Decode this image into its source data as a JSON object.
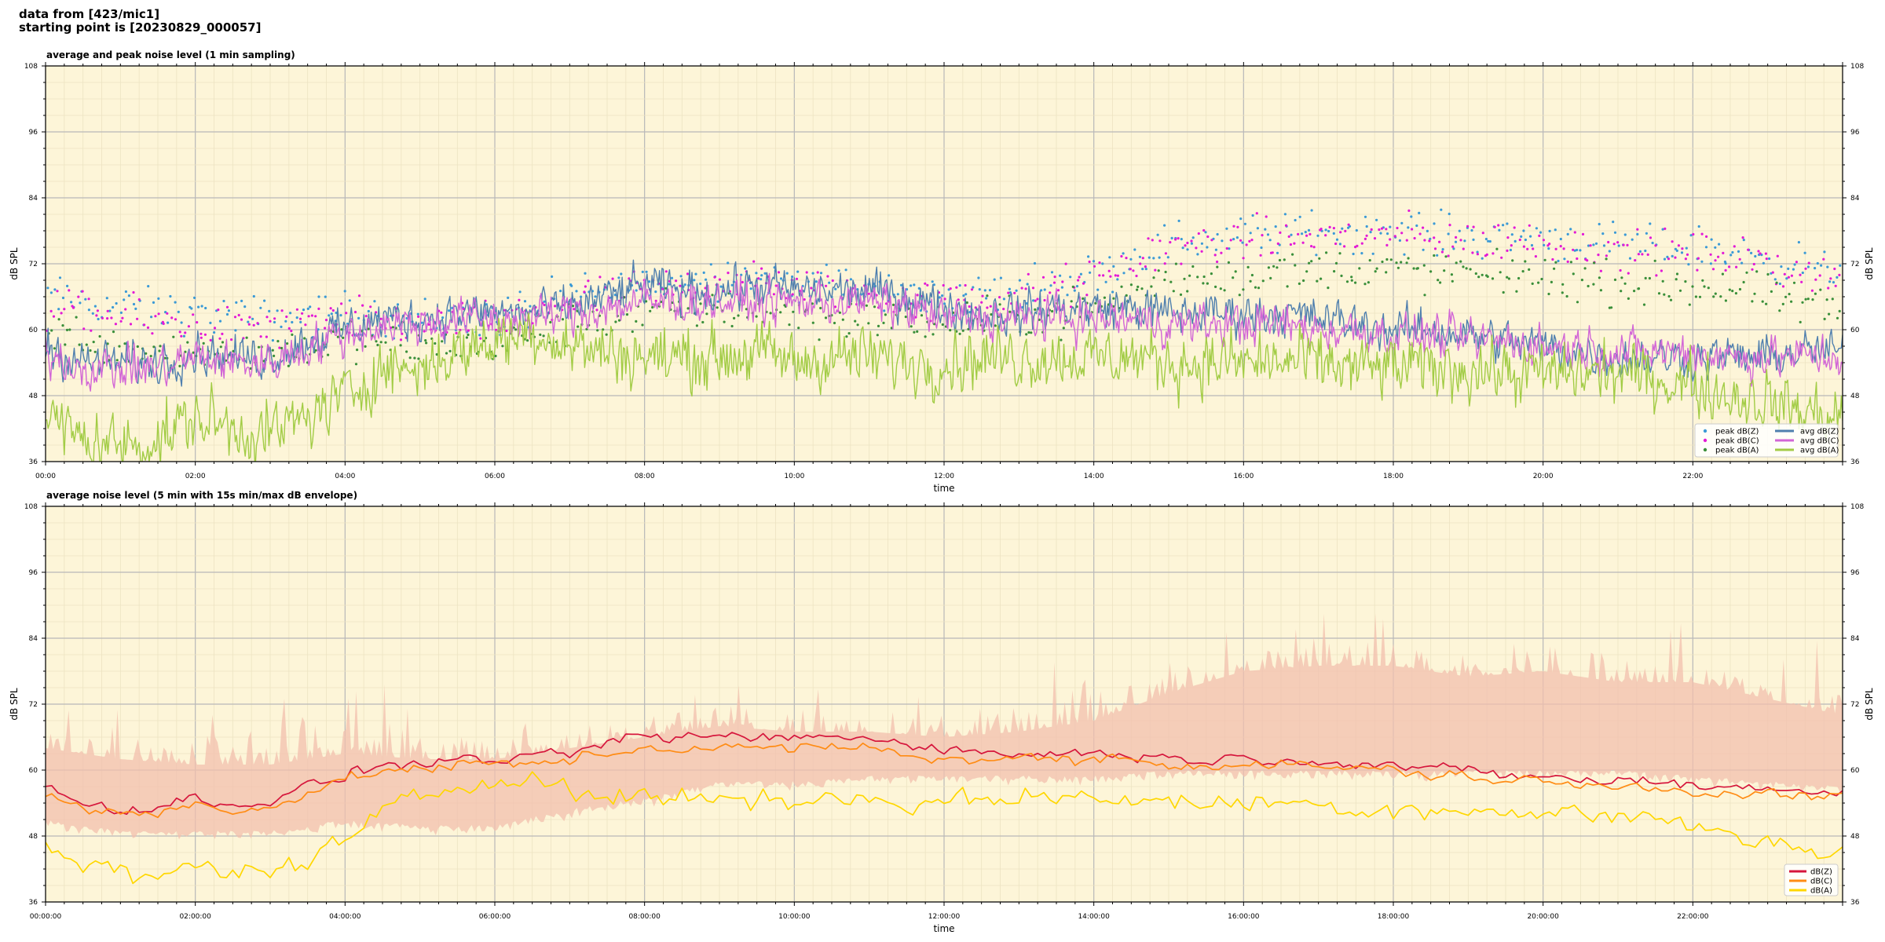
{
  "header": {
    "line1": "data from [423/mic1]",
    "line2": "starting point is [20230829_000057]"
  },
  "chart_data": [
    {
      "type": "line",
      "title": "average and peak noise level (1 min sampling)",
      "xlabel": "time",
      "ylabel": "dB SPL",
      "ylim": [
        36,
        108
      ],
      "yticks": [
        36,
        48,
        60,
        72,
        84,
        96,
        108
      ],
      "xlim_hours": [
        0,
        24
      ],
      "xticks": [
        "00:00",
        "02:00",
        "04:00",
        "06:00",
        "08:00",
        "10:00",
        "12:00",
        "14:00",
        "16:00",
        "18:00",
        "20:00",
        "22:00"
      ],
      "grid": true,
      "background": "#fdf5d8",
      "legend_position": "lower-right",
      "legend_columns": 2,
      "series": [
        {
          "name": "peak dB(Z)",
          "kind": "scatter",
          "color": "#3b9ad6",
          "values": [
            66,
            64,
            63,
            62,
            63,
            62,
            62,
            66,
            68,
            70,
            69,
            67,
            66,
            67,
            70,
            76,
            77,
            78,
            78,
            77,
            77,
            75,
            75,
            73,
            70
          ]
        },
        {
          "name": "peak dB(C)",
          "kind": "scatter",
          "color": "#e31ad6",
          "values": [
            64,
            62,
            61,
            60,
            62,
            61,
            61,
            65,
            67,
            69,
            68,
            66,
            65,
            66,
            69,
            75,
            76,
            77,
            77,
            76,
            76,
            74,
            74,
            72,
            69
          ]
        },
        {
          "name": "peak dB(A)",
          "kind": "scatter",
          "color": "#3a8f3a",
          "values": [
            60,
            57,
            56,
            56,
            58,
            57,
            57,
            61,
            63,
            64,
            63,
            62,
            61,
            62,
            64,
            69,
            70,
            71,
            71,
            70,
            70,
            68,
            68,
            66,
            63
          ]
        },
        {
          "name": "avg dB(Z)",
          "kind": "line",
          "color": "#4f7fae",
          "values": [
            57,
            54,
            54,
            54,
            56,
            55,
            55,
            58,
            60,
            62,
            62,
            63,
            63,
            63,
            64,
            66,
            68,
            67,
            67,
            68,
            67,
            67,
            67,
            66,
            64,
            63,
            63,
            64,
            64,
            64,
            63,
            63,
            63,
            63,
            62,
            61,
            60,
            60,
            59,
            58,
            57,
            56,
            55,
            55,
            55,
            55,
            55,
            56,
            56
          ]
        },
        {
          "name": "avg dB(C)",
          "kind": "line",
          "color": "#d266d6",
          "values": [
            56,
            53,
            53,
            53,
            55,
            54,
            54,
            57,
            59,
            61,
            61,
            62,
            62,
            62,
            63,
            64,
            65,
            65,
            65,
            65,
            65,
            65,
            65,
            64,
            62,
            62,
            62,
            62,
            62,
            62,
            61,
            61,
            61,
            61,
            60,
            60,
            59,
            59,
            58,
            58,
            57,
            57,
            56,
            56,
            56,
            55,
            55,
            55,
            55
          ]
        },
        {
          "name": "avg dB(A)",
          "kind": "line",
          "color": "#a2cc45",
          "values": [
            44,
            40,
            39,
            40,
            44,
            42,
            41,
            44,
            48,
            53,
            53,
            56,
            58,
            60,
            57,
            56,
            55,
            55,
            55,
            56,
            54,
            55,
            55,
            54,
            54,
            55,
            55,
            55,
            55,
            55,
            54,
            54,
            54,
            54,
            54,
            53,
            53,
            53,
            53,
            52,
            52,
            52,
            52,
            51,
            50,
            48,
            47,
            45,
            44
          ]
        }
      ]
    },
    {
      "type": "line",
      "title": "average noise level (5 min with 15s min/max dB envelope)",
      "xlabel": "time",
      "ylabel": "dB SPL",
      "ylim": [
        36,
        108
      ],
      "yticks": [
        36,
        48,
        60,
        72,
        84,
        96,
        108
      ],
      "xlim_hours": [
        0,
        24
      ],
      "xticks": [
        "00:00:00",
        "02:00:00",
        "04:00:00",
        "06:00:00",
        "08:00:00",
        "10:00:00",
        "12:00:00",
        "14:00:00",
        "16:00:00",
        "18:00:00",
        "20:00:00",
        "22:00:00"
      ],
      "grid": true,
      "background": "#fdf5d8",
      "legend_position": "lower-right",
      "legend_columns": 1,
      "envelope": {
        "color": "#f1bfae",
        "upper": [
          64,
          62,
          61,
          61,
          63,
          62,
          62,
          64,
          66,
          68,
          67,
          67,
          66,
          67,
          69,
          74,
          78,
          79,
          79,
          77,
          78,
          76,
          76,
          73,
          70
        ],
        "lower": [
          51,
          49,
          49,
          49,
          51,
          50,
          50,
          53,
          55,
          58,
          58,
          59,
          59,
          59,
          59,
          60,
          60,
          60,
          60,
          60,
          60,
          60,
          59,
          58,
          57
        ]
      },
      "series": [
        {
          "name": "dB(Z)",
          "kind": "line",
          "color": "#d6163c",
          "values": [
            57,
            54,
            53,
            53,
            55,
            54,
            54,
            57,
            59,
            61,
            61,
            62,
            62,
            62,
            63,
            65,
            66,
            66,
            66,
            66,
            66,
            66,
            66,
            65,
            64,
            63,
            63,
            63,
            63,
            63,
            62,
            62,
            62,
            62,
            62,
            61,
            61,
            60,
            60,
            59,
            59,
            58,
            58,
            58,
            57,
            57,
            57,
            56,
            56
          ]
        },
        {
          "name": "dB(C)",
          "kind": "line",
          "color": "#ff8c14",
          "values": [
            56,
            53,
            52,
            52,
            54,
            53,
            53,
            56,
            58,
            60,
            60,
            61,
            61,
            61,
            62,
            63,
            64,
            64,
            64,
            64,
            64,
            64,
            64,
            63,
            62,
            62,
            62,
            62,
            62,
            62,
            61,
            61,
            61,
            61,
            61,
            60,
            60,
            59,
            59,
            58,
            58,
            57,
            57,
            57,
            56,
            56,
            56,
            55,
            55
          ]
        },
        {
          "name": "dB(A)",
          "kind": "line",
          "color": "#ffd700",
          "values": [
            46,
            43,
            41,
            40,
            43,
            42,
            41,
            44,
            47,
            52,
            55,
            57,
            58,
            60,
            56,
            55,
            55,
            55,
            55,
            55,
            54,
            55,
            55,
            54,
            54,
            55,
            55,
            55,
            55,
            55,
            54,
            54,
            54,
            54,
            54,
            53,
            53,
            53,
            53,
            52,
            52,
            52,
            52,
            51,
            50,
            48,
            47,
            46,
            45
          ]
        }
      ]
    }
  ]
}
